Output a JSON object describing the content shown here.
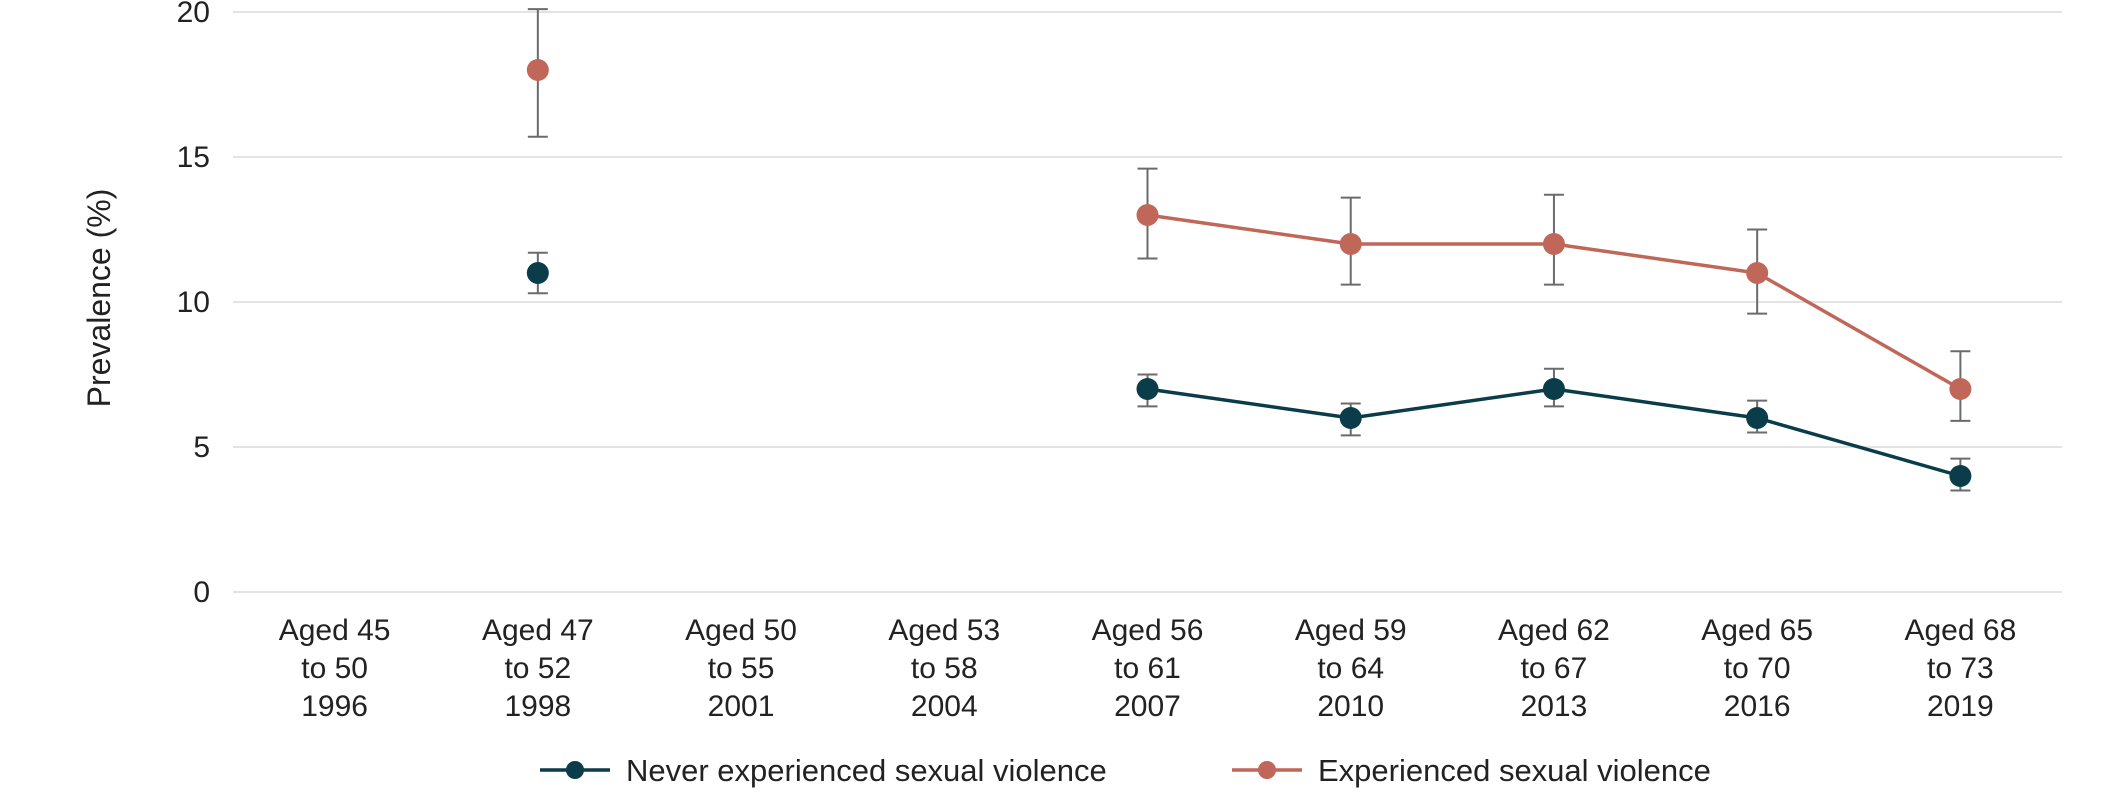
{
  "chart_data": {
    "type": "line",
    "ylabel": "Prevalence (%)",
    "xlabel": "",
    "ylim": [
      0,
      20
    ],
    "yticks": [
      0,
      5,
      10,
      15,
      20
    ],
    "grid": true,
    "legend_position": "bottom",
    "categories": [
      [
        "Aged 45",
        "to 50",
        "1996"
      ],
      [
        "Aged 47",
        "to 52",
        "1998"
      ],
      [
        "Aged 50",
        "to 55",
        "2001"
      ],
      [
        "Aged 53",
        "to 58",
        "2004"
      ],
      [
        "Aged 56",
        "to 61",
        "2007"
      ],
      [
        "Aged 59",
        "to 64",
        "2010"
      ],
      [
        "Aged 62",
        "to 67",
        "2013"
      ],
      [
        "Aged 65",
        "to 70",
        "2016"
      ],
      [
        "Aged 68",
        "to 73",
        "2019"
      ]
    ],
    "series": [
      {
        "name": "Never experienced sexual violence",
        "color": "#0b3c49",
        "values": [
          null,
          11,
          null,
          null,
          7,
          6,
          7,
          6,
          4
        ],
        "lower": [
          null,
          10.3,
          null,
          null,
          6.4,
          5.4,
          6.4,
          5.5,
          3.5
        ],
        "upper": [
          null,
          11.7,
          null,
          null,
          7.5,
          6.5,
          7.7,
          6.6,
          4.6
        ]
      },
      {
        "name": "Experienced sexual violence",
        "color": "#c0675a",
        "values": [
          null,
          18,
          null,
          null,
          13,
          12,
          12,
          11,
          7
        ],
        "lower": [
          null,
          15.7,
          null,
          null,
          11.5,
          10.6,
          10.6,
          9.6,
          5.9
        ],
        "upper": [
          null,
          20.1,
          null,
          null,
          14.6,
          13.6,
          13.7,
          12.5,
          8.3
        ]
      }
    ]
  }
}
